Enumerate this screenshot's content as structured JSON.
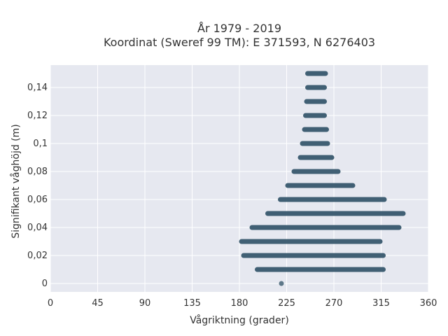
{
  "chart_data": {
    "type": "scatter",
    "title_lines": [
      "År 1979 - 2019",
      "Koordinat (Sweref 99 TM): E 371593, N 6276403"
    ],
    "xlabel": "Vågriktning (grader)",
    "ylabel": "Signifikant våghöjd (m)",
    "xlim": [
      0,
      360
    ],
    "ylim": [
      -0.006,
      0.156
    ],
    "xticks": [
      0,
      45,
      90,
      135,
      180,
      225,
      270,
      315,
      360
    ],
    "xtick_labels": [
      "0",
      "45",
      "90",
      "135",
      "180",
      "225",
      "270",
      "315",
      "360"
    ],
    "yticks": [
      0,
      0.02,
      0.04,
      0.06,
      0.08,
      0.1,
      0.12,
      0.14
    ],
    "ytick_labels": [
      "0",
      "0,02",
      "0,04",
      "0,06",
      "0,08",
      "0,1",
      "0,12",
      "0,14"
    ],
    "grid": true,
    "marker_color": "#2e5066",
    "background_color": "#e6e8f0",
    "bands": [
      {
        "y": 0.0,
        "x_min": 220,
        "x_max": 220
      },
      {
        "y": 0.01,
        "x_min": 197,
        "x_max": 317
      },
      {
        "y": 0.02,
        "x_min": 184,
        "x_max": 317
      },
      {
        "y": 0.03,
        "x_min": 182,
        "x_max": 314
      },
      {
        "y": 0.04,
        "x_min": 192,
        "x_max": 332
      },
      {
        "y": 0.05,
        "x_min": 207,
        "x_max": 336
      },
      {
        "y": 0.06,
        "x_min": 219,
        "x_max": 318
      },
      {
        "y": 0.07,
        "x_min": 226,
        "x_max": 288
      },
      {
        "y": 0.08,
        "x_min": 232,
        "x_max": 274
      },
      {
        "y": 0.09,
        "x_min": 238,
        "x_max": 268
      },
      {
        "y": 0.1,
        "x_min": 240,
        "x_max": 264
      },
      {
        "y": 0.11,
        "x_min": 242,
        "x_max": 263
      },
      {
        "y": 0.12,
        "x_min": 243,
        "x_max": 261
      },
      {
        "y": 0.13,
        "x_min": 244,
        "x_max": 261
      },
      {
        "y": 0.14,
        "x_min": 245,
        "x_max": 261
      },
      {
        "y": 0.15,
        "x_min": 245,
        "x_max": 262
      }
    ]
  }
}
